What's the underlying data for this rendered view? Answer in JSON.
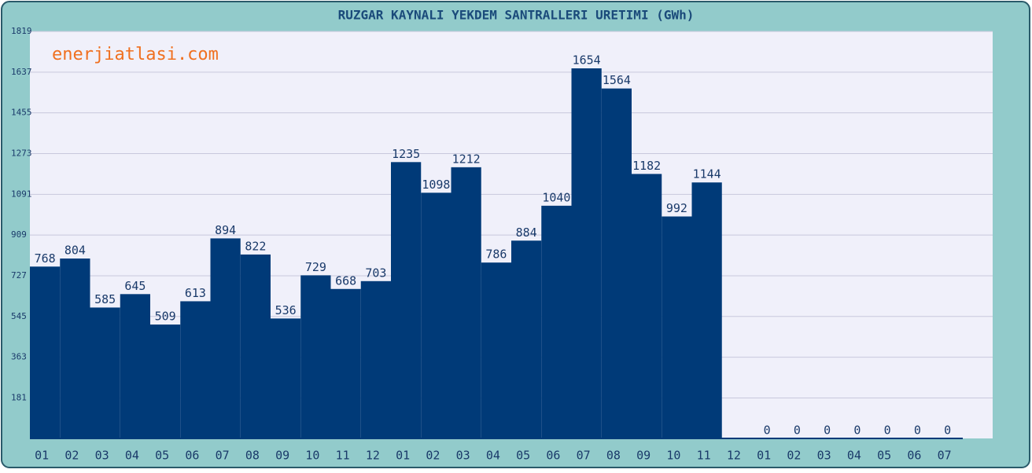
{
  "chart_data": {
    "type": "bar",
    "title": "RUZGAR KAYNALI YEKDEM SANTRALLERI URETIMI (GWh)",
    "watermark": "enerjiatlasi.com",
    "categories": [
      "01",
      "02",
      "03",
      "04",
      "05",
      "06",
      "07",
      "08",
      "09",
      "10",
      "11",
      "12",
      "01",
      "02",
      "03",
      "04",
      "05",
      "06",
      "07",
      "08",
      "09",
      "10",
      "11",
      "12",
      "01",
      "02",
      "03",
      "04",
      "05",
      "06",
      "07"
    ],
    "values": [
      768,
      804,
      585,
      645,
      509,
      613,
      894,
      822,
      536,
      729,
      668,
      703,
      1235,
      1098,
      1212,
      786,
      884,
      1040,
      1654,
      1564,
      1182,
      992,
      1144,
      null,
      0,
      0,
      0,
      0,
      0,
      0,
      0
    ],
    "color": "#003a78",
    "ylim": [
      0,
      1819
    ],
    "yticks": [
      181,
      363,
      545,
      727,
      909,
      1091,
      1273,
      1455,
      1637,
      1819
    ],
    "grid": true
  }
}
